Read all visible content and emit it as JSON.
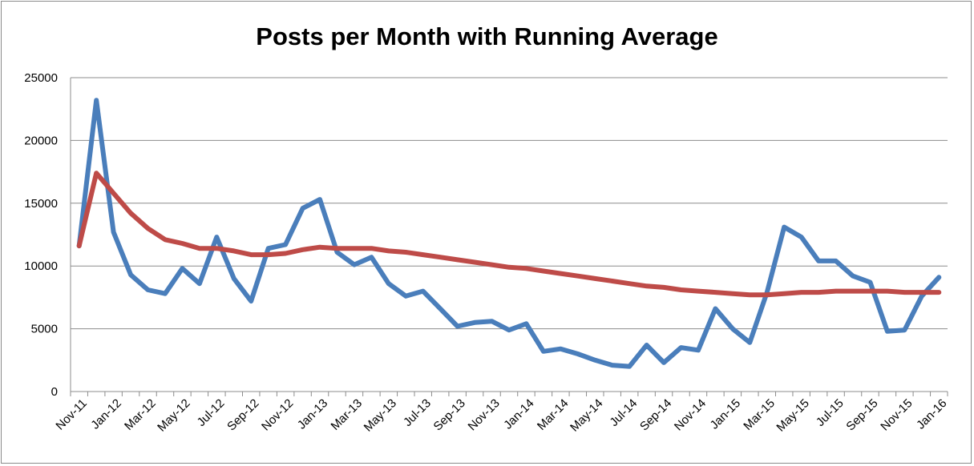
{
  "chart_data": {
    "type": "line",
    "title": "Posts per Month with Running Average",
    "xlabel": "",
    "ylabel": "",
    "ylim": [
      0,
      25000
    ],
    "yticks": [
      "0",
      "5000",
      "10000",
      "15000",
      "20000",
      "25000"
    ],
    "grid": true,
    "legend": "none",
    "x": [
      "Nov-11",
      "Dec-11",
      "Jan-12",
      "Feb-12",
      "Mar-12",
      "Apr-12",
      "May-12",
      "Jun-12",
      "Jul-12",
      "Aug-12",
      "Sep-12",
      "Oct-12",
      "Nov-12",
      "Dec-12",
      "Jan-13",
      "Feb-13",
      "Mar-13",
      "Apr-13",
      "May-13",
      "Jun-13",
      "Jul-13",
      "Aug-13",
      "Sep-13",
      "Oct-13",
      "Nov-13",
      "Dec-13",
      "Jan-14",
      "Feb-14",
      "Mar-14",
      "Apr-14",
      "May-14",
      "Jun-14",
      "Jul-14",
      "Aug-14",
      "Sep-14",
      "Oct-14",
      "Nov-14",
      "Dec-14",
      "Jan-15",
      "Feb-15",
      "Mar-15",
      "Apr-15",
      "May-15",
      "Jun-15",
      "Jul-15",
      "Aug-15",
      "Sep-15",
      "Oct-15",
      "Nov-15",
      "Dec-15",
      "Jan-16"
    ],
    "xtick_labels": [
      "Nov-11",
      "Jan-12",
      "Mar-12",
      "May-12",
      "Jul-12",
      "Sep-12",
      "Nov-12",
      "Jan-13",
      "Mar-13",
      "May-13",
      "Jul-13",
      "Sep-13",
      "Nov-13",
      "Jan-14",
      "Mar-14",
      "May-14",
      "Jul-14",
      "Sep-14",
      "Nov-14",
      "Jan-15",
      "Mar-15",
      "May-15",
      "Jul-15",
      "Sep-15",
      "Nov-15",
      "Jan-16"
    ],
    "series": [
      {
        "color": "#4a7ebb",
        "values": [
          11600,
          23200,
          12700,
          9300,
          8100,
          7800,
          9800,
          8600,
          12300,
          9000,
          7200,
          11400,
          11700,
          14600,
          15300,
          11100,
          10100,
          10700,
          8600,
          7600,
          8000,
          6600,
          5200,
          5500,
          5600,
          4900,
          5400,
          3200,
          3400,
          3000,
          2500,
          2100,
          2000,
          3700,
          2300,
          3500,
          3300,
          6600,
          5000,
          3900,
          7900,
          13100,
          12300,
          10400,
          10400,
          9200,
          8700,
          4800,
          4900,
          7600,
          9100
        ]
      },
      {
        "color": "#be4b48",
        "values": [
          11600,
          17400,
          15800,
          14200,
          13000,
          12100,
          11800,
          11400,
          11400,
          11200,
          10900,
          10900,
          11000,
          11300,
          11500,
          11400,
          11400,
          11400,
          11200,
          11100,
          10900,
          10700,
          10500,
          10300,
          10100,
          9900,
          9800,
          9600,
          9400,
          9200,
          9000,
          8800,
          8600,
          8400,
          8300,
          8100,
          8000,
          7900,
          7800,
          7700,
          7700,
          7800,
          7900,
          7900,
          8000,
          8000,
          8000,
          8000,
          7900,
          7900,
          7900
        ]
      }
    ]
  }
}
